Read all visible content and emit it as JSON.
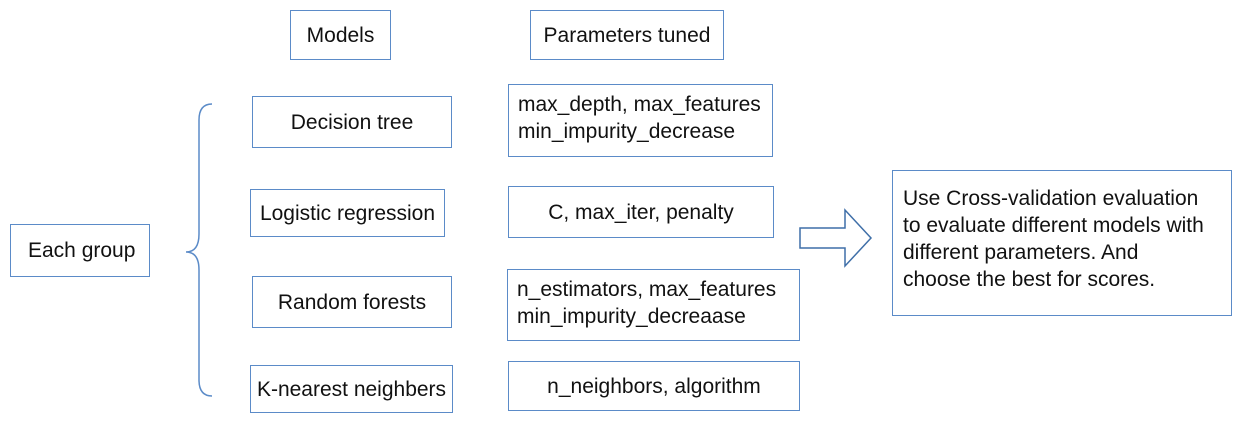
{
  "headers": {
    "models": "Models",
    "parameters": "Parameters tuned"
  },
  "group_label": "Each group",
  "rows": [
    {
      "model": "Decision tree",
      "params": [
        "max_depth, max_features",
        "min_impurity_decrease"
      ]
    },
    {
      "model": "Logistic regression",
      "params": [
        "C, max_iter, penalty"
      ]
    },
    {
      "model": "Random forests",
      "params": [
        "n_estimators, max_features",
        "min_impurity_decreaase"
      ]
    },
    {
      "model": "K-nearest neighbers",
      "params": [
        "n_neighbors, algorithm"
      ]
    }
  ],
  "conclusion": [
    "Use Cross-validation evaluation",
    "to evaluate different models with",
    "different parameters. And",
    "choose the best for scores."
  ],
  "colors": {
    "border": "#5b8bc8",
    "arrow": "#3f6fa8",
    "text": "#111111"
  }
}
